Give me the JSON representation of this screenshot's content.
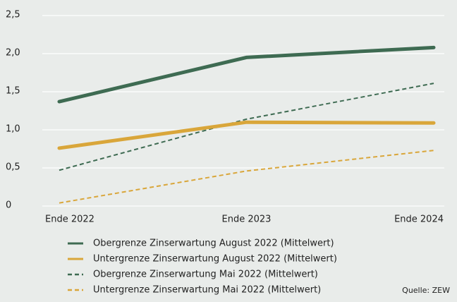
{
  "chart_data": {
    "type": "line",
    "categories": [
      "Ende 2022",
      "Ende 2023",
      "Ende 2024"
    ],
    "series": [
      {
        "name": "Obergrenze Zinserwartung August 2022 (Mittelwert)",
        "color": "#3e6b52",
        "dash": false,
        "values": [
          1.37,
          1.95,
          2.08
        ]
      },
      {
        "name": "Untergrenze Zinserwartung August 2022 (Mittelwert)",
        "color": "#d9a63a",
        "dash": false,
        "values": [
          0.76,
          1.1,
          1.09
        ]
      },
      {
        "name": "Obergrenze Zinserwartung Mai 2022 (Mittelwert)",
        "color": "#3e6b52",
        "dash": true,
        "values": [
          0.47,
          1.14,
          1.61
        ]
      },
      {
        "name": "Untergrenze Zinserwartung Mai 2022 (Mittelwert)",
        "color": "#d9a63a",
        "dash": true,
        "values": [
          0.04,
          0.46,
          0.73
        ]
      }
    ],
    "ylim": [
      0,
      2.5
    ],
    "yticks": [
      0,
      {
        "value": 0.5,
        "label": "0,5"
      },
      {
        "value": 1,
        "label": "1,0"
      },
      {
        "value": 1.5,
        "label": "1,5"
      },
      {
        "value": 2,
        "label": "2,0"
      },
      {
        "value": 2.5,
        "label": "2,5"
      }
    ],
    "grid": true,
    "source": "Quelle: ZEW"
  }
}
